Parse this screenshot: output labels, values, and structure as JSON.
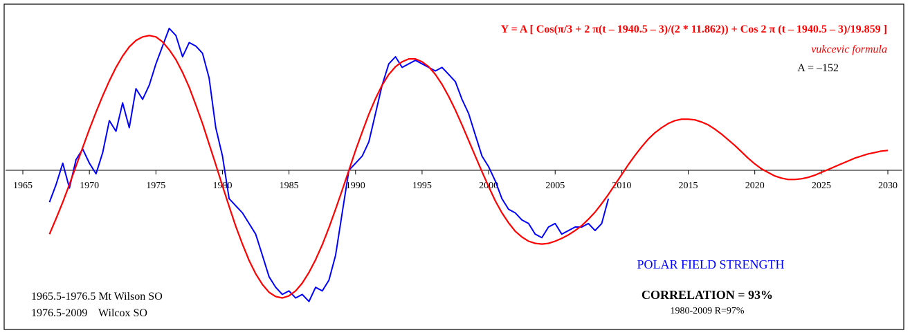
{
  "chart_data": {
    "type": "line",
    "title": "",
    "xlabel": "",
    "ylabel": "",
    "xlim": [
      1965,
      2030
    ],
    "ylim": [
      -200,
      210
    ],
    "grid": false,
    "x_ticks": [
      1965,
      1970,
      1975,
      1980,
      1985,
      1990,
      1995,
      2000,
      2005,
      2010,
      2015,
      2020,
      2025,
      2030
    ],
    "x_tick_labels": [
      "1965",
      "1970",
      "1975",
      "1980",
      "1985",
      "1990",
      "1995",
      "2000",
      "2005",
      "2010",
      "2015",
      "2020",
      "2025",
      "2030"
    ],
    "series": [
      {
        "name": "POLAR FIELD STRENGTH",
        "color": "#0000ff",
        "x": [
          1967.0,
          1967.5,
          1968.0,
          1968.5,
          1969.0,
          1969.5,
          1970.0,
          1970.5,
          1971.0,
          1971.5,
          1972.0,
          1972.5,
          1973.0,
          1973.5,
          1974.0,
          1974.5,
          1975.0,
          1975.5,
          1976.0,
          1976.5,
          1977.0,
          1977.5,
          1978.0,
          1978.5,
          1979.0,
          1979.5,
          1980.0,
          1980.5,
          1981.0,
          1981.5,
          1982.0,
          1982.5,
          1983.0,
          1983.5,
          1984.0,
          1984.5,
          1985.0,
          1985.5,
          1986.0,
          1986.5,
          1987.0,
          1987.5,
          1988.0,
          1988.5,
          1989.0,
          1989.5,
          1990.0,
          1990.5,
          1991.0,
          1991.5,
          1992.0,
          1992.5,
          1993.0,
          1993.5,
          1994.0,
          1994.5,
          1995.0,
          1995.5,
          1996.0,
          1996.5,
          1997.0,
          1997.5,
          1998.0,
          1998.5,
          1999.0,
          1999.5,
          2000.0,
          2000.5,
          2001.0,
          2001.5,
          2002.0,
          2002.5,
          2003.0,
          2003.5,
          2004.0,
          2004.5,
          2005.0,
          2005.5,
          2006.0,
          2006.5,
          2007.0,
          2007.5,
          2008.0,
          2008.5,
          2009.0
        ],
        "y": [
          -45,
          -20,
          10,
          -25,
          15,
          30,
          10,
          -5,
          25,
          70,
          55,
          95,
          60,
          115,
          100,
          120,
          150,
          175,
          200,
          190,
          160,
          180,
          175,
          165,
          130,
          60,
          20,
          -40,
          -50,
          -60,
          -75,
          -90,
          -120,
          -150,
          -165,
          -175,
          -170,
          -180,
          -175,
          -185,
          -165,
          -170,
          -155,
          -120,
          -60,
          0,
          10,
          20,
          40,
          80,
          120,
          150,
          160,
          145,
          150,
          155,
          150,
          145,
          140,
          145,
          135,
          125,
          100,
          80,
          50,
          20,
          5,
          -15,
          -40,
          -55,
          -60,
          -70,
          -75,
          -90,
          -95,
          -80,
          -75,
          -90,
          -85,
          -80,
          -80,
          -75,
          -85,
          -75,
          -40
        ]
      },
      {
        "name": "vukcevic formula",
        "color": "#ff0000",
        "x": [
          1967,
          1967.5,
          1968,
          1968.5,
          1969,
          1969.5,
          1970,
          1970.5,
          1971,
          1971.5,
          1972,
          1972.5,
          1973,
          1973.5,
          1974,
          1974.5,
          1975,
          1975.5,
          1976,
          1976.5,
          1977,
          1977.5,
          1978,
          1978.5,
          1979,
          1979.5,
          1980,
          1980.5,
          1981,
          1981.5,
          1982,
          1982.5,
          1983,
          1983.5,
          1984,
          1984.5,
          1985,
          1985.5,
          1986,
          1986.5,
          1987,
          1987.5,
          1988,
          1988.5,
          1989,
          1989.5,
          1990,
          1990.5,
          1991,
          1991.5,
          1992,
          1992.5,
          1993,
          1993.5,
          1994,
          1994.5,
          1995,
          1995.5,
          1996,
          1996.5,
          1997,
          1997.5,
          1998,
          1998.5,
          1999,
          1999.5,
          2000,
          2000.5,
          2001,
          2001.5,
          2002,
          2002.5,
          2003,
          2003.5,
          2004,
          2004.5,
          2005,
          2005.5,
          2006,
          2006.5,
          2007,
          2007.5,
          2008,
          2008.5,
          2009,
          2009.5,
          2010,
          2010.5,
          2011,
          2011.5,
          2012,
          2012.5,
          2013,
          2013.5,
          2014,
          2014.5,
          2015,
          2015.5,
          2016,
          2016.5,
          2017,
          2017.5,
          2018,
          2018.5,
          2019,
          2019.5,
          2020,
          2020.5,
          2021,
          2021.5,
          2022,
          2022.5,
          2023,
          2023.5,
          2024,
          2024.5,
          2025,
          2025.5,
          2026,
          2026.5,
          2027,
          2027.5,
          2028,
          2028.5,
          2029,
          2029.5,
          2030
        ],
        "y": [
          -90,
          -68,
          -45,
          -20,
          6,
          32,
          58,
          82,
          105,
          126,
          145,
          161,
          174,
          183,
          188,
          190,
          188,
          181,
          170,
          156,
          138,
          117,
          92,
          66,
          37,
          8,
          -22,
          -51,
          -79,
          -104,
          -127,
          -146,
          -161,
          -172,
          -178,
          -180,
          -177,
          -170,
          -159,
          -144,
          -126,
          -105,
          -81,
          -55,
          -28,
          0,
          28,
          54,
          79,
          101,
          120,
          135,
          146,
          153,
          157,
          157,
          153,
          146,
          135,
          121,
          104,
          85,
          64,
          42,
          20,
          -2,
          -23,
          -43,
          -60,
          -74,
          -86,
          -94,
          -100,
          -103,
          -104,
          -103,
          -100,
          -96,
          -91,
          -85,
          -78,
          -69,
          -59,
          -47,
          -34,
          -20,
          -6,
          8,
          21,
          33,
          44,
          53,
          60,
          66,
          70,
          72,
          72,
          71,
          68,
          64,
          58,
          51,
          43,
          35,
          26,
          17,
          9,
          2,
          -3,
          -8,
          -11,
          -13,
          -13,
          -12,
          -10,
          -7,
          -3,
          1,
          5,
          9,
          13,
          17,
          20,
          23,
          25,
          27,
          28
        ]
      }
    ],
    "annotations": {
      "formula": "Y = A [ Cos(π/3 + 2 π(t – 1940.5 – 3)/(2 * 11.862)) + Cos 2 π (t – 1940.5 – 3)/19.859 ]",
      "formula_name": "vukcevic formula",
      "param": "A = –152",
      "series_label": "POLAR FIELD STRENGTH",
      "correlation": "CORRELATION = 93%",
      "correlation_sub": "1980-2009 R=97%",
      "source_line1": "1965.5-1976.5 Mt Wilson SO",
      "source_line2": "1976.5-2009    Wilcox SO"
    }
  }
}
